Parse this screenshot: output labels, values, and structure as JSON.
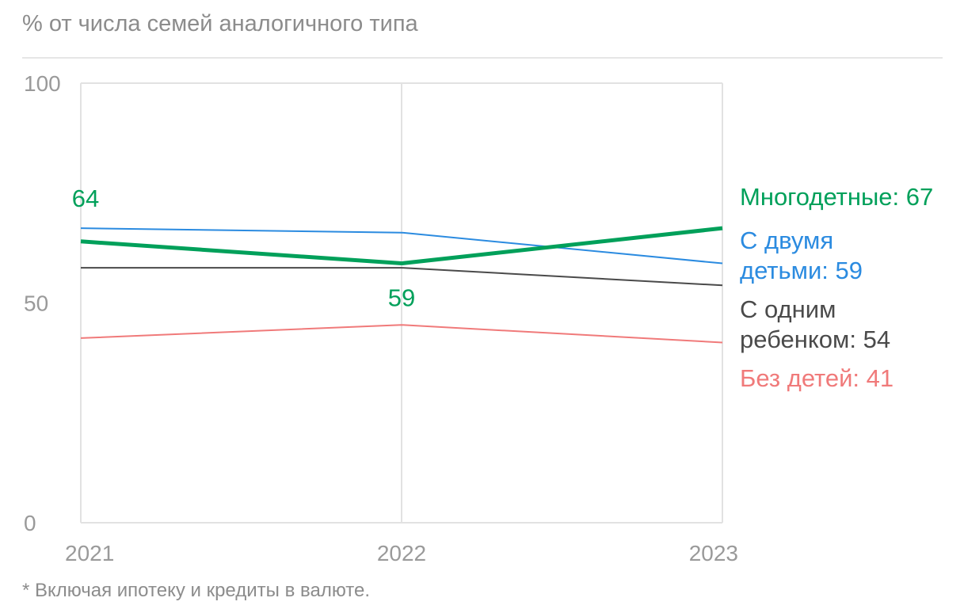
{
  "subtitle": "% от числа семей аналогичного типа",
  "footnote": "* Включая ипотеку и кредиты в валюте.",
  "chart_data": {
    "type": "line",
    "x": [
      "2021",
      "2022",
      "2023"
    ],
    "ylim": [
      0,
      100
    ],
    "yticks": [
      "0",
      "50",
      "100"
    ],
    "grid": true,
    "legend_position": "right",
    "series": [
      {
        "name": "Без детей",
        "values": [
          42,
          45,
          41
        ],
        "color": "#f07a7a",
        "legend_label": "Без детей: 41"
      },
      {
        "name": "С одним ребенком",
        "values": [
          58,
          58,
          54
        ],
        "color": "#4a4a4a",
        "legend_label_line1": "С одним",
        "legend_label_line2": "ребенком: 54"
      },
      {
        "name": "С двумя детьми",
        "values": [
          67,
          66,
          59
        ],
        "color": "#2b8be0",
        "legend_label_line1": "С двумя",
        "legend_label_line2": "детьми: 59"
      },
      {
        "name": "Многодетные",
        "values": [
          64,
          59,
          67
        ],
        "color": "#00a05a",
        "legend_label": "Многодетные: 67"
      }
    ],
    "annotations": [
      {
        "series": "Многодетные",
        "x": "2021",
        "text": "64"
      },
      {
        "series": "Многодетные",
        "x": "2022",
        "text": "59"
      }
    ]
  }
}
